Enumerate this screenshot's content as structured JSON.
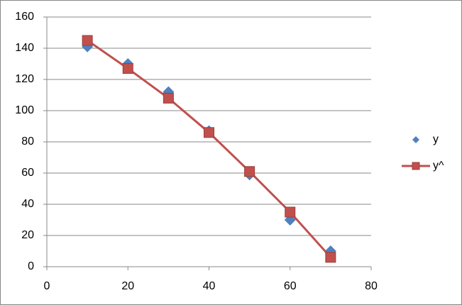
{
  "chart_data": {
    "type": "scatter",
    "series": [
      {
        "name": "y",
        "color": "#4f81bd",
        "marker": "diamond",
        "line": false,
        "x": [
          10,
          20,
          30,
          40,
          50,
          60,
          70
        ],
        "values": [
          141,
          130,
          112,
          87,
          59,
          30,
          10
        ]
      },
      {
        "name": "y^",
        "color": "#c0504d",
        "marker": "square",
        "line": true,
        "x": [
          10,
          20,
          30,
          40,
          50,
          60,
          70
        ],
        "values": [
          145,
          127,
          108,
          86,
          61,
          35,
          6
        ]
      }
    ],
    "xlim": [
      0,
      80
    ],
    "xticks": [
      0,
      20,
      40,
      60,
      80
    ],
    "ylim": [
      0,
      160
    ],
    "yticks": [
      0,
      20,
      40,
      60,
      80,
      100,
      120,
      140,
      160
    ],
    "grid": true,
    "legend": "right"
  }
}
